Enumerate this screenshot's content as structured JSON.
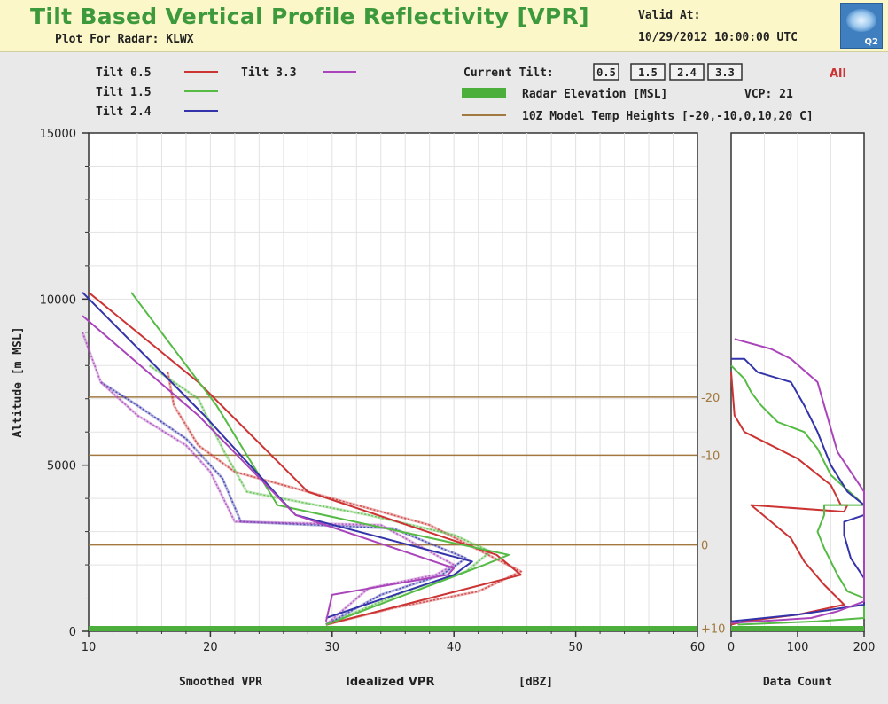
{
  "header": {
    "title": "Tilt Based Vertical Profile Reflectivity [VPR]",
    "subtitle": "Plot For Radar: KLWX",
    "valid_label": "Valid At:",
    "valid_value": "10/29/2012 10:00:00 UTC",
    "logo_text": "Q2"
  },
  "legend": {
    "tilts": [
      {
        "label": "Tilt 0.5",
        "color": "#cc3333"
      },
      {
        "label": "Tilt 1.5",
        "color": "#55bb44"
      },
      {
        "label": "Tilt 2.4",
        "color": "#3333aa"
      },
      {
        "label": "Tilt 3.3",
        "color": "#aa44bb"
      }
    ],
    "current_tilt_label": "Current Tilt:",
    "tilt_buttons": [
      "0.5",
      "1.5",
      "2.4",
      "3.3"
    ],
    "all_label": "All",
    "all_color": "#cc3333",
    "radar_elev_label": "Radar Elevation [MSL]",
    "radar_elev_color": "#4caf3c",
    "vcp_label": "VCP: 21",
    "temp_label": "10Z Model Temp Heights [-20,-10,0,10,20 C]",
    "temp_color": "#a07840"
  },
  "chart_data": [
    {
      "type": "line",
      "panel": "vpr",
      "ylabel": "Altitude [m MSL]",
      "xlabel_parts": [
        "Smoothed VPR",
        "Idealized VPR",
        "[dBZ]"
      ],
      "xlim": [
        10,
        60
      ],
      "ylim": [
        0,
        15000
      ],
      "x_ticks": [
        10,
        20,
        30,
        40,
        50,
        60
      ],
      "y_ticks": [
        0,
        5000,
        10000,
        15000
      ],
      "grid": true,
      "temp_heights": [
        {
          "label": "-20",
          "altitude": 7050
        },
        {
          "label": "-10",
          "altitude": 5300
        },
        {
          "label": "0",
          "altitude": 2600
        },
        {
          "label": "+10",
          "altitude": 100
        }
      ],
      "radar_elevation": 80,
      "idealized": [
        {
          "name": "Tilt 0.5",
          "color": "#cc3333",
          "points": [
            [
              10,
              10200
            ],
            [
              19,
              7500
            ],
            [
              28,
              4200
            ],
            [
              43.5,
              2300
            ],
            [
              45.5,
              1700
            ],
            [
              29.5,
              200
            ]
          ]
        },
        {
          "name": "Tilt 1.5",
          "color": "#55bb44",
          "points": [
            [
              13.5,
              10200
            ],
            [
              20.5,
              6800
            ],
            [
              25.5,
              3800
            ],
            [
              44.5,
              2300
            ],
            [
              42.5,
              2000
            ],
            [
              29.5,
              200
            ]
          ]
        },
        {
          "name": "Tilt 2.4",
          "color": "#3333aa",
          "points": [
            [
              9.5,
              10200
            ],
            [
              19.5,
              6500
            ],
            [
              27,
              3500
            ],
            [
              41.5,
              2100
            ],
            [
              40,
              1700
            ],
            [
              29.5,
              400
            ]
          ]
        },
        {
          "name": "Tilt 3.3",
          "color": "#aa44bb",
          "points": [
            [
              9.5,
              9500
            ],
            [
              19,
              6500
            ],
            [
              27,
              3500
            ],
            [
              40,
              1900
            ],
            [
              39.5,
              1700
            ],
            [
              30,
              1100
            ],
            [
              29.5,
              300
            ]
          ]
        }
      ],
      "smoothed": [
        {
          "name": "Tilt 0.5",
          "color": "#cc3333",
          "points": [
            [
              16.5,
              7800
            ],
            [
              17,
              6800
            ],
            [
              19,
              5600
            ],
            [
              22,
              4800
            ],
            [
              32,
              3800
            ],
            [
              38,
              3200
            ],
            [
              45.5,
              1800
            ],
            [
              42,
              1200
            ],
            [
              35,
              700
            ],
            [
              29.5,
              200
            ]
          ]
        },
        {
          "name": "Tilt 1.5",
          "color": "#55bb44",
          "points": [
            [
              15,
              8000
            ],
            [
              17,
              7500
            ],
            [
              19,
              7000
            ],
            [
              21,
              5500
            ],
            [
              23,
              4200
            ],
            [
              33,
              3500
            ],
            [
              40,
              2900
            ],
            [
              43,
              2400
            ],
            [
              41,
              1800
            ],
            [
              36,
              1200
            ],
            [
              29.5,
              200
            ]
          ]
        },
        {
          "name": "Tilt 2.4",
          "color": "#3333aa",
          "points": [
            [
              11,
              7500
            ],
            [
              14,
              6800
            ],
            [
              18,
              5800
            ],
            [
              21,
              4600
            ],
            [
              22.5,
              3300
            ],
            [
              35,
              3100
            ],
            [
              41,
              2200
            ],
            [
              39,
              1700
            ],
            [
              34,
              1100
            ],
            [
              29.5,
              200
            ]
          ]
        },
        {
          "name": "Tilt 3.3",
          "color": "#aa44bb",
          "points": [
            [
              9.5,
              9000
            ],
            [
              11,
              7500
            ],
            [
              14,
              6500
            ],
            [
              18,
              5600
            ],
            [
              20,
              4800
            ],
            [
              22,
              3300
            ],
            [
              34,
              3200
            ],
            [
              40,
              2000
            ],
            [
              38.5,
              1700
            ],
            [
              33,
              1300
            ],
            [
              29.5,
              200
            ]
          ]
        }
      ]
    },
    {
      "type": "line",
      "panel": "data_count",
      "xlabel": "Data Count",
      "xlim": [
        0,
        200
      ],
      "x_ticks": [
        0,
        100,
        200
      ],
      "series": [
        {
          "name": "Tilt 0.5",
          "color": "#cc3333",
          "points": [
            [
              0,
              7800
            ],
            [
              5,
              6500
            ],
            [
              20,
              6000
            ],
            [
              60,
              5600
            ],
            [
              100,
              5200
            ],
            [
              150,
              4400
            ],
            [
              165,
              3800
            ],
            [
              175,
              3800
            ],
            [
              170,
              3600
            ],
            [
              30,
              3800
            ],
            [
              60,
              3300
            ],
            [
              90,
              2800
            ],
            [
              110,
              2100
            ],
            [
              140,
              1400
            ],
            [
              170,
              800
            ],
            [
              100,
              500
            ],
            [
              20,
              300
            ],
            [
              0,
              200
            ]
          ]
        },
        {
          "name": "Tilt 1.5",
          "color": "#55bb44",
          "points": [
            [
              0,
              8000
            ],
            [
              20,
              7600
            ],
            [
              30,
              7200
            ],
            [
              45,
              6800
            ],
            [
              70,
              6300
            ],
            [
              110,
              6000
            ],
            [
              130,
              5500
            ],
            [
              150,
              4700
            ],
            [
              200,
              3800
            ],
            [
              140,
              3800
            ],
            [
              140,
              3500
            ],
            [
              130,
              3000
            ],
            [
              140,
              2500
            ],
            [
              160,
              1700
            ],
            [
              175,
              1200
            ],
            [
              200,
              1000
            ],
            [
              200,
              400
            ],
            [
              130,
              300
            ],
            [
              10,
              200
            ]
          ]
        },
        {
          "name": "Tilt 2.4",
          "color": "#3333aa",
          "points": [
            [
              0,
              8200
            ],
            [
              20,
              8200
            ],
            [
              40,
              7800
            ],
            [
              90,
              7500
            ],
            [
              110,
              6800
            ],
            [
              130,
              6000
            ],
            [
              150,
              5000
            ],
            [
              175,
              4200
            ],
            [
              200,
              3800
            ],
            [
              200,
              3500
            ],
            [
              170,
              3300
            ],
            [
              170,
              2900
            ],
            [
              180,
              2200
            ],
            [
              200,
              1600
            ],
            [
              200,
              800
            ],
            [
              100,
              500
            ],
            [
              0,
              300
            ]
          ]
        },
        {
          "name": "Tilt 3.3",
          "color": "#aa44bb",
          "points": [
            [
              5,
              8800
            ],
            [
              60,
              8500
            ],
            [
              90,
              8200
            ],
            [
              130,
              7500
            ],
            [
              140,
              6800
            ],
            [
              160,
              5400
            ],
            [
              180,
              4800
            ],
            [
              200,
              4200
            ],
            [
              200,
              2800
            ],
            [
              200,
              1400
            ],
            [
              200,
              900
            ],
            [
              160,
              600
            ],
            [
              120,
              400
            ],
            [
              40,
              300
            ],
            [
              0,
              250
            ]
          ]
        }
      ]
    }
  ]
}
